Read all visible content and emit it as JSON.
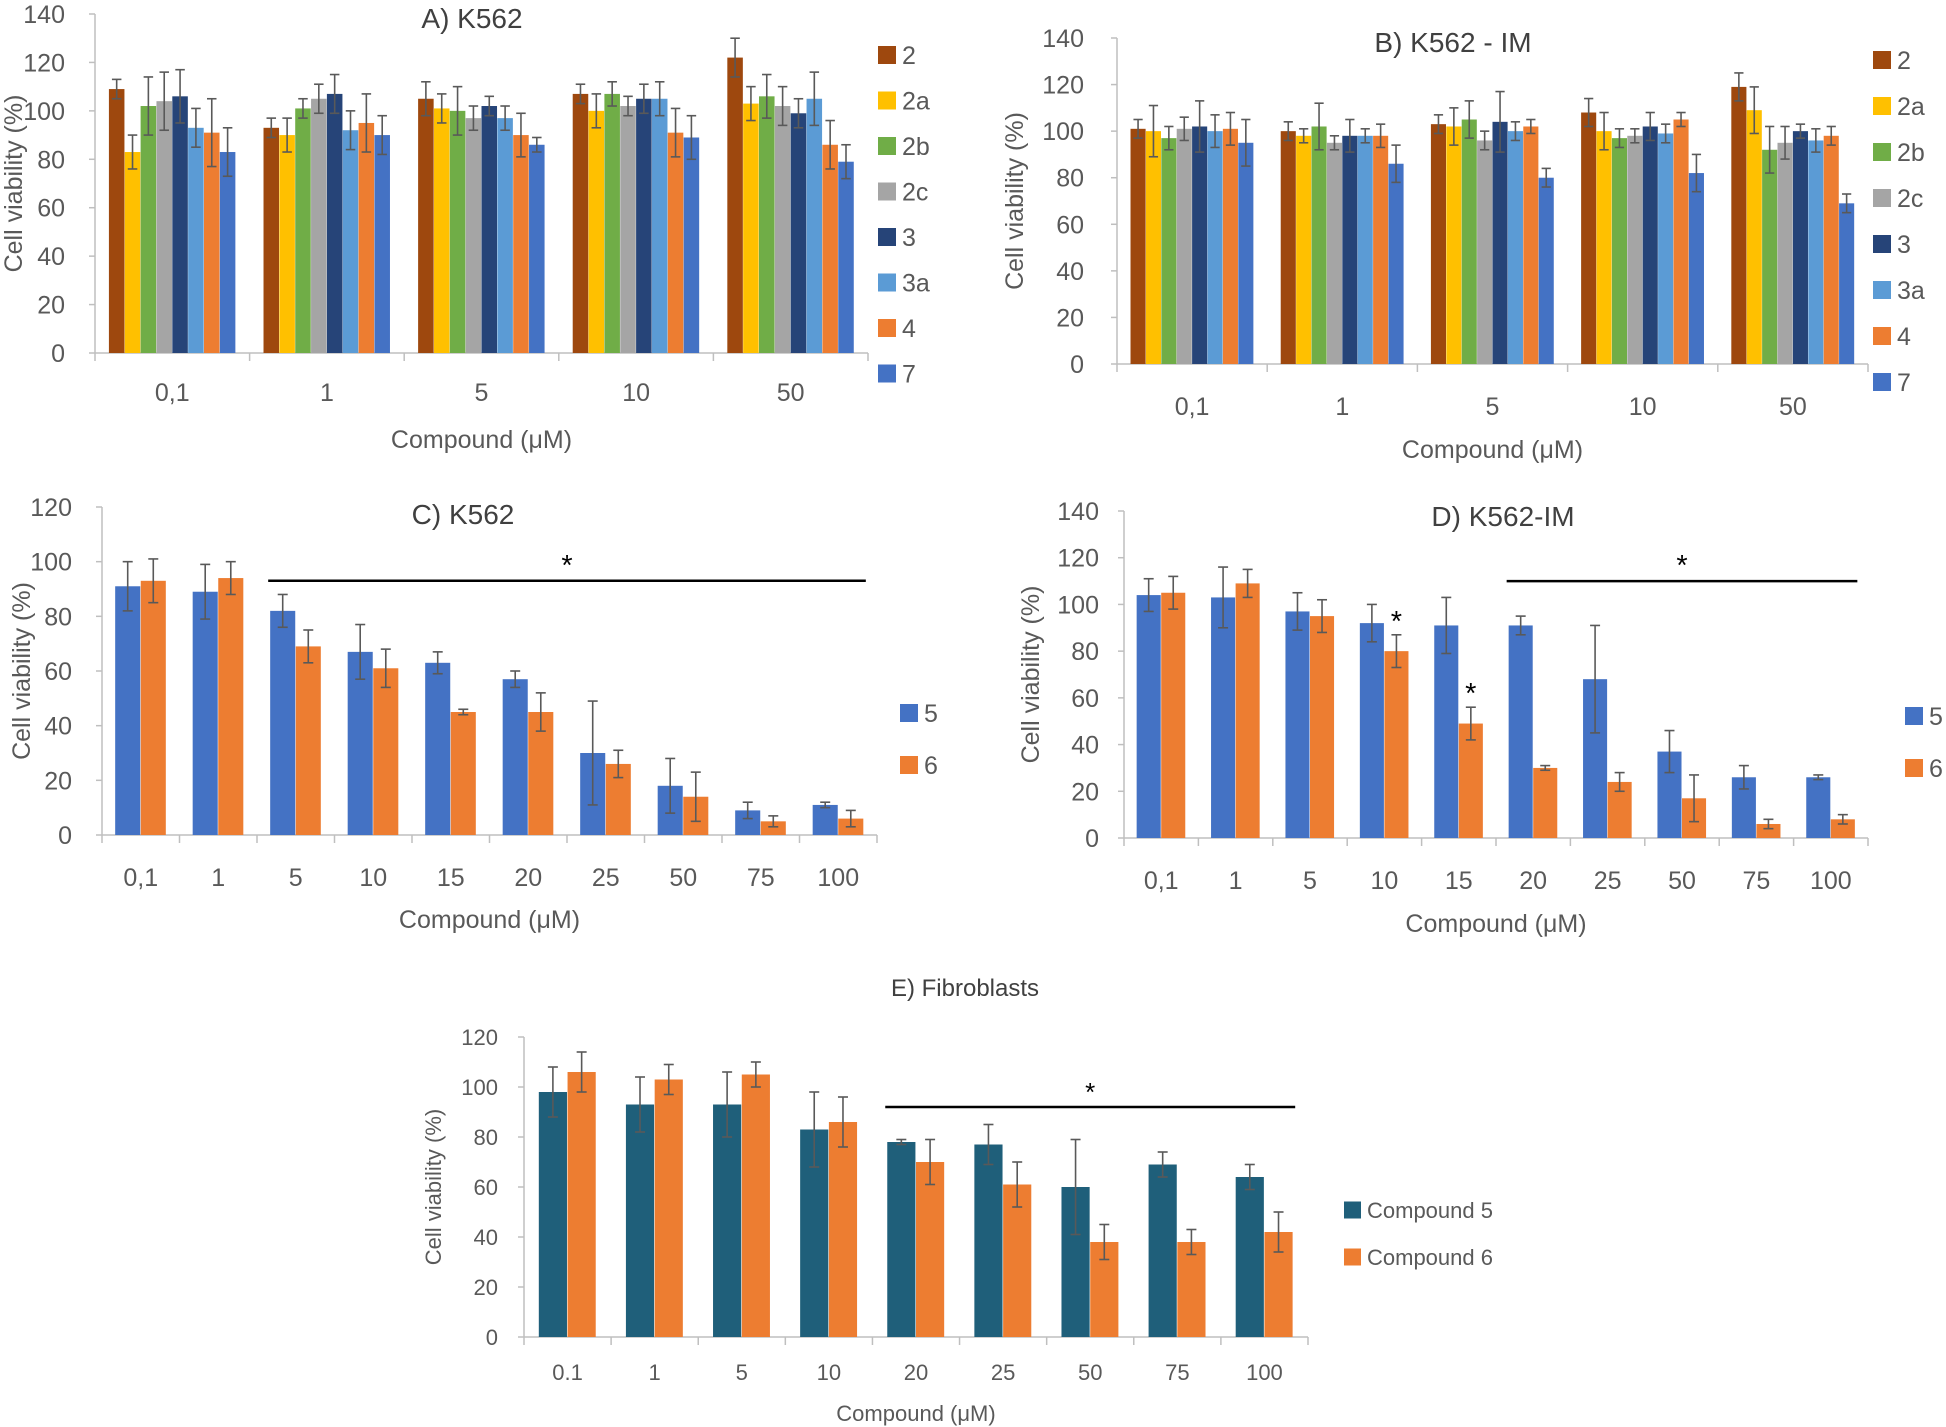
{
  "figure": {
    "name": "cell-viability-figure"
  },
  "colors": {
    "c2": "#9E480E",
    "c2a": "#FFC000",
    "c2b": "#70AD47",
    "c2c": "#A5A5A5",
    "c3": "#264478",
    "c3a": "#5B9BD5",
    "c4": "#ED7D31",
    "c7": "#4472C4",
    "teal": "#1F5F7A",
    "axis": "#BFBFBF",
    "text": "#595959",
    "err": "#595959",
    "sig": "#000000"
  },
  "chart_data": [
    {
      "id": "A",
      "type": "bar",
      "title": "A) K562",
      "xlabel": "Compound (μM)",
      "ylabel": "Cell viability (%)",
      "ylim": [
        0,
        140
      ],
      "yticks": [
        0,
        20,
        40,
        60,
        80,
        100,
        120,
        140
      ],
      "categories": [
        "0,1",
        "1",
        "5",
        "10",
        "50"
      ],
      "legend_position": "right",
      "series": [
        {
          "name": "2",
          "color": "c2",
          "values": [
            109,
            93,
            105,
            107,
            122
          ],
          "errors": [
            4,
            4,
            7,
            4,
            8
          ]
        },
        {
          "name": "2a",
          "color": "c2a",
          "values": [
            83,
            90,
            101,
            100,
            103
          ],
          "errors": [
            7,
            7,
            6,
            7,
            7
          ]
        },
        {
          "name": "2b",
          "color": "c2b",
          "values": [
            102,
            101,
            100,
            107,
            106
          ],
          "errors": [
            12,
            4,
            10,
            5,
            9
          ]
        },
        {
          "name": "2c",
          "color": "c2c",
          "values": [
            104,
            105,
            97,
            102,
            102
          ],
          "errors": [
            12,
            6,
            5,
            4,
            8
          ]
        },
        {
          "name": "3",
          "color": "c3",
          "values": [
            106,
            107,
            102,
            105,
            99
          ],
          "errors": [
            11,
            8,
            4,
            6,
            6
          ]
        },
        {
          "name": "3a",
          "color": "c3a",
          "values": [
            93,
            92,
            97,
            105,
            105
          ],
          "errors": [
            8,
            8,
            5,
            7,
            11
          ]
        },
        {
          "name": "4",
          "color": "c4",
          "values": [
            91,
            95,
            90,
            91,
            86
          ],
          "errors": [
            14,
            12,
            9,
            10,
            10
          ]
        },
        {
          "name": "7",
          "color": "c7",
          "values": [
            83,
            90,
            86,
            89,
            79
          ],
          "errors": [
            10,
            8,
            3,
            9,
            7
          ]
        }
      ]
    },
    {
      "id": "B",
      "type": "bar",
      "title": "B) K562 - IM",
      "xlabel": "Compound (μM)",
      "ylabel": "Cell viability (%)",
      "ylim": [
        0,
        140
      ],
      "yticks": [
        0,
        20,
        40,
        60,
        80,
        100,
        120,
        140
      ],
      "categories": [
        "0,1",
        "1",
        "5",
        "10",
        "50"
      ],
      "legend_position": "right",
      "series": [
        {
          "name": "2",
          "color": "c2",
          "values": [
            101,
            100,
            103,
            108,
            119
          ],
          "errors": [
            4,
            4,
            4,
            6,
            6
          ]
        },
        {
          "name": "2a",
          "color": "c2a",
          "values": [
            100,
            98,
            102,
            100,
            109
          ],
          "errors": [
            11,
            3,
            8,
            8,
            10
          ]
        },
        {
          "name": "2b",
          "color": "c2b",
          "values": [
            97,
            102,
            105,
            97,
            92
          ],
          "errors": [
            5,
            10,
            8,
            4,
            10
          ]
        },
        {
          "name": "2c",
          "color": "c2c",
          "values": [
            101,
            95,
            96,
            98,
            95
          ],
          "errors": [
            5,
            3,
            4,
            3,
            7
          ]
        },
        {
          "name": "3",
          "color": "c3",
          "values": [
            102,
            98,
            104,
            102,
            100
          ],
          "errors": [
            11,
            7,
            13,
            6,
            3
          ]
        },
        {
          "name": "3a",
          "color": "c3a",
          "values": [
            100,
            98,
            100,
            99,
            96
          ],
          "errors": [
            7,
            3,
            4,
            4,
            5
          ]
        },
        {
          "name": "4",
          "color": "c4",
          "values": [
            101,
            98,
            102,
            105,
            98
          ],
          "errors": [
            7,
            5,
            3,
            3,
            4
          ]
        },
        {
          "name": "7",
          "color": "c7",
          "values": [
            95,
            86,
            80,
            82,
            69
          ],
          "errors": [
            10,
            8,
            4,
            8,
            4
          ]
        }
      ]
    },
    {
      "id": "C",
      "type": "bar",
      "title": "C) K562",
      "xlabel": "Compound (μM)",
      "ylabel": "Cell viability (%)",
      "ylim": [
        0,
        120
      ],
      "yticks": [
        0,
        20,
        40,
        60,
        80,
        100,
        120
      ],
      "categories": [
        "0,1",
        "1",
        "5",
        "10",
        "15",
        "20",
        "25",
        "50",
        "75",
        "100"
      ],
      "legend_position": "right",
      "significance": [
        {
          "from": 2,
          "to": 9,
          "label": "*"
        }
      ],
      "series": [
        {
          "name": "5",
          "color": "c7",
          "values": [
            91,
            89,
            82,
            67,
            63,
            57,
            30,
            18,
            9,
            11
          ],
          "errors": [
            9,
            10,
            6,
            10,
            4,
            3,
            19,
            10,
            3,
            1
          ]
        },
        {
          "name": "6",
          "color": "c4",
          "values": [
            93,
            94,
            69,
            61,
            45,
            45,
            26,
            14,
            5,
            6
          ],
          "errors": [
            8,
            6,
            6,
            7,
            1,
            7,
            5,
            9,
            2,
            3
          ]
        }
      ]
    },
    {
      "id": "D",
      "type": "bar",
      "title": "D) K562-IM",
      "xlabel": "Compound (μM)",
      "ylabel": "Cell viability (%)",
      "ylim": [
        0,
        140
      ],
      "yticks": [
        0,
        20,
        40,
        60,
        80,
        100,
        120,
        140
      ],
      "categories": [
        "0,1",
        "1",
        "5",
        "10",
        "15",
        "20",
        "25",
        "50",
        "75",
        "100"
      ],
      "legend_position": "right",
      "significance": [
        {
          "from": 5,
          "to": 9,
          "label": "*"
        }
      ],
      "point_stars": [
        {
          "category": 3,
          "series": 1,
          "label": "*"
        },
        {
          "category": 4,
          "series": 1,
          "label": "*"
        }
      ],
      "series": [
        {
          "name": "5",
          "color": "c7",
          "values": [
            104,
            103,
            97,
            92,
            91,
            91,
            68,
            37,
            26,
            26
          ],
          "errors": [
            7,
            13,
            8,
            8,
            12,
            4,
            23,
            9,
            5,
            1
          ]
        },
        {
          "name": "6",
          "color": "c4",
          "values": [
            105,
            109,
            95,
            80,
            49,
            30,
            24,
            17,
            6,
            8
          ],
          "errors": [
            7,
            6,
            7,
            7,
            7,
            1,
            4,
            10,
            2,
            2
          ]
        }
      ]
    },
    {
      "id": "E",
      "type": "bar",
      "title": "E) Fibroblasts",
      "xlabel": "Compound (μM)",
      "ylabel": "Cell viability (%)",
      "ylim": [
        0,
        120
      ],
      "yticks": [
        0,
        20,
        40,
        60,
        80,
        100,
        120
      ],
      "categories": [
        "0.1",
        "1",
        "5",
        "10",
        "20",
        "25",
        "50",
        "75",
        "100"
      ],
      "legend_position": "right",
      "significance": [
        {
          "from": 4,
          "to": 8,
          "label": "*"
        }
      ],
      "series": [
        {
          "name": "Compound 5",
          "color": "teal",
          "values": [
            98,
            93,
            93,
            83,
            78,
            77,
            60,
            69,
            64
          ],
          "errors": [
            10,
            11,
            13,
            15,
            1,
            8,
            19,
            5,
            5
          ]
        },
        {
          "name": "Compound 6",
          "color": "c4",
          "values": [
            106,
            103,
            105,
            86,
            70,
            61,
            38,
            38,
            42
          ],
          "errors": [
            8,
            6,
            5,
            10,
            9,
            9,
            7,
            5,
            8
          ]
        }
      ]
    }
  ]
}
